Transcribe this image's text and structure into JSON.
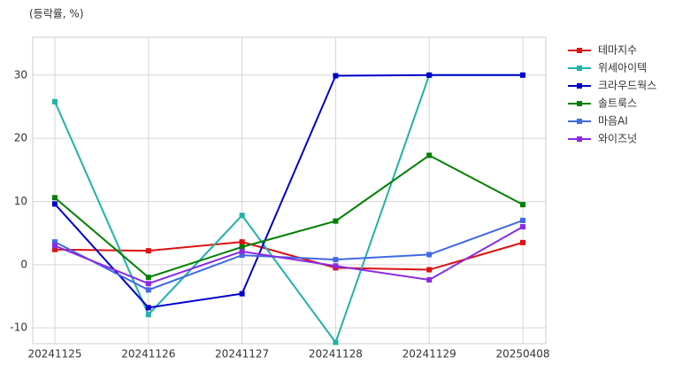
{
  "chart_data": {
    "type": "line",
    "y_label": "(등락률, %)",
    "categories": [
      "20241125",
      "20241126",
      "20241127",
      "20241128",
      "20241129",
      "20250408"
    ],
    "series": [
      {
        "name": "테마지수",
        "color": "#dd1111",
        "values": [
          2.4,
          2.2,
          3.6,
          -0.5,
          -0.8,
          3.5
        ]
      },
      {
        "name": "위세아이텍",
        "color": "#20b2aa",
        "values": [
          25.8,
          -7.9,
          7.8,
          -12.3,
          30,
          30
        ]
      },
      {
        "name": "크라우드웍스",
        "color": "#0000cc",
        "values": [
          9.6,
          -6.8,
          -4.6,
          29.9,
          30,
          30
        ]
      },
      {
        "name": "솔트룩스",
        "color": "#008000",
        "values": [
          10.6,
          -2.0,
          2.8,
          6.9,
          17.3,
          9.5
        ]
      },
      {
        "name": "마음AI",
        "color": "#4169e1",
        "values": [
          3.6,
          -4.0,
          1.5,
          0.8,
          1.6,
          7.0
        ]
      },
      {
        "name": "와이즈넛",
        "color": "#8a2be2",
        "values": [
          3.0,
          -3.0,
          2.1,
          -0.2,
          -2.4,
          6.0
        ]
      }
    ],
    "ylim": [
      -12.5,
      36
    ],
    "yticks": [
      -10,
      0,
      10,
      20,
      30
    ],
    "grid": true,
    "legend": "right"
  }
}
